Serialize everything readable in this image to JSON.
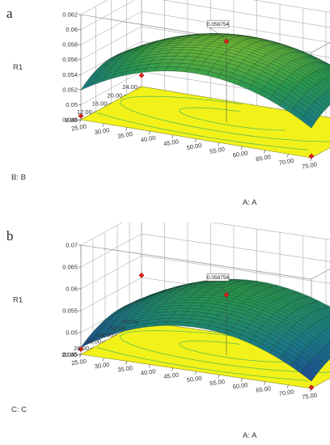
{
  "chart_data": [
    {
      "type": "surface3d",
      "panel_label": "a",
      "zlabel": "R1",
      "xlabel": "A: A",
      "ylabel": "B: B",
      "x_ticks": [
        "25.00",
        "30.00",
        "35.00",
        "40.00",
        "45.00",
        "50.00",
        "55.00",
        "60.00",
        "65.00",
        "70.00",
        "75.00"
      ],
      "y_ticks": [
        "8.00",
        "12.00",
        "16.00",
        "20.00",
        "24.00"
      ],
      "z_ticks": [
        "0.048",
        "0.05",
        "0.052",
        "0.054",
        "0.056",
        "0.058",
        "0.06",
        "0.062"
      ],
      "xlim": [
        25,
        75
      ],
      "ylim": [
        8,
        24
      ],
      "zlim": [
        0.048,
        0.062
      ],
      "callout": "0.058754",
      "design_points": [
        {
          "x": 50,
          "y": 16,
          "z": 0.058754
        },
        {
          "x": 25,
          "y": 24,
          "z": 0.0495
        },
        {
          "x": 25,
          "y": 8,
          "z": 0.0485
        },
        {
          "x": 75,
          "y": 8,
          "z": 0.0482
        }
      ]
    },
    {
      "type": "surface3d",
      "panel_label": "b",
      "zlabel": "R1",
      "xlabel": "A: A",
      "ylabel": "C: C",
      "x_ticks": [
        "25.00",
        "30.00",
        "35.00",
        "40.00",
        "45.00",
        "50.00",
        "55.00",
        "60.00",
        "65.00",
        "70.00",
        "75.00"
      ],
      "y_ticks": [
        "20.00",
        "28.00",
        "36.00",
        "44.00",
        "52.00",
        "60.00"
      ],
      "z_ticks": [
        "0.045",
        "0.05",
        "0.055",
        "0.06",
        "0.065",
        "0.07"
      ],
      "xlim": [
        25,
        75
      ],
      "ylim": [
        20,
        60
      ],
      "zlim": [
        0.045,
        0.07
      ],
      "callout": "0.058754",
      "design_points": [
        {
          "x": 50,
          "y": 40,
          "z": 0.058754
        },
        {
          "x": 25,
          "y": 60,
          "z": 0.0555
        },
        {
          "x": 25,
          "y": 20,
          "z": 0.0462
        },
        {
          "x": 75,
          "y": 20,
          "z": 0.0452
        }
      ]
    }
  ]
}
